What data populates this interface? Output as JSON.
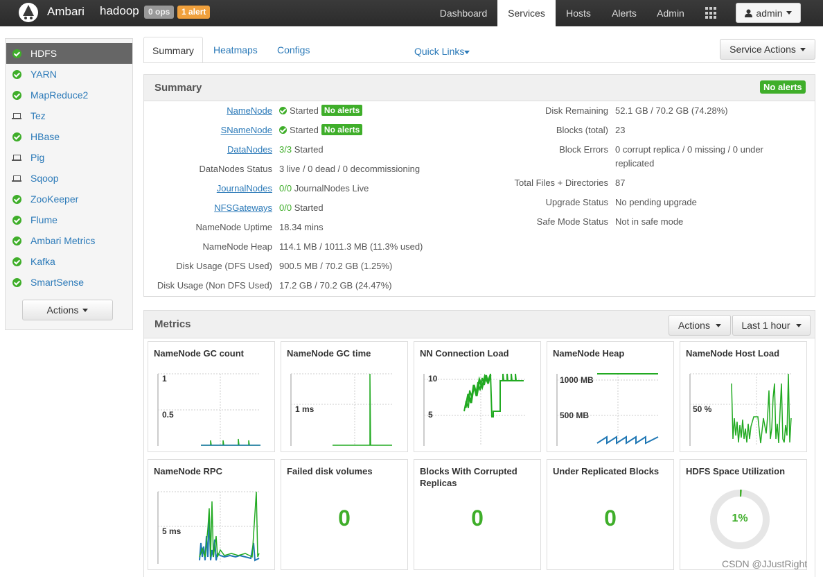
{
  "header": {
    "brand": "Ambari",
    "cluster": "hadoop",
    "ops_badge": "0 ops",
    "alert_badge": "1 alert",
    "nav": [
      "Dashboard",
      "Services",
      "Hosts",
      "Alerts",
      "Admin"
    ],
    "active_nav": "Services",
    "user": "admin"
  },
  "sidebar": {
    "items": [
      {
        "label": "HDFS",
        "icon": "check-circle-icon",
        "active": true
      },
      {
        "label": "YARN",
        "icon": "check-circle-icon"
      },
      {
        "label": "MapReduce2",
        "icon": "check-circle-icon"
      },
      {
        "label": "Tez",
        "icon": "laptop-icon"
      },
      {
        "label": "HBase",
        "icon": "check-circle-icon"
      },
      {
        "label": "Pig",
        "icon": "laptop-icon"
      },
      {
        "label": "Sqoop",
        "icon": "laptop-icon"
      },
      {
        "label": "ZooKeeper",
        "icon": "check-circle-icon"
      },
      {
        "label": "Flume",
        "icon": "check-circle-icon"
      },
      {
        "label": "Ambari Metrics",
        "icon": "check-circle-icon"
      },
      {
        "label": "Kafka",
        "icon": "check-circle-icon"
      },
      {
        "label": "SmartSense",
        "icon": "check-circle-icon"
      }
    ],
    "actions_label": "Actions"
  },
  "tabs": [
    "Summary",
    "Heatmaps",
    "Configs"
  ],
  "quick_links": "Quick Links",
  "service_actions": "Service Actions",
  "summary": {
    "title": "Summary",
    "no_alerts": "No alerts",
    "left": [
      {
        "label": "NameNode",
        "link": true,
        "status": "Started",
        "badge": "No alerts"
      },
      {
        "label": "SNameNode",
        "link": true,
        "status": "Started",
        "badge": "No alerts"
      },
      {
        "label": "DataNodes",
        "link": true,
        "count": "3/3",
        "value": " Started"
      },
      {
        "label": "DataNodes Status",
        "value": "3 live / 0 dead / 0 decommissioning"
      },
      {
        "label": "JournalNodes",
        "link": true,
        "count": "0/0",
        "value": " JournalNodes Live"
      },
      {
        "label": "NFSGateways",
        "link": true,
        "count": "0/0",
        "value": " Started"
      },
      {
        "label": "NameNode Uptime",
        "value": "18.34 mins"
      },
      {
        "label": "NameNode Heap",
        "value": "114.1 MB / 1011.3 MB (11.3% used)"
      },
      {
        "label": "Disk Usage (DFS Used)",
        "value": "900.5 MB / 70.2 GB (1.25%)"
      },
      {
        "label": "Disk Usage (Non DFS Used)",
        "value": "17.2 GB / 70.2 GB (24.47%)"
      }
    ],
    "right": [
      {
        "label": "Disk Remaining",
        "value": "52.1 GB / 70.2 GB (74.28%)"
      },
      {
        "label": "Blocks (total)",
        "value": "23"
      },
      {
        "label": "Block Errors",
        "value": "0 corrupt replica / 0 missing / 0 under",
        "value2": "replicated"
      },
      {
        "label": "Total Files + Directories",
        "value": "87"
      },
      {
        "label": "Upgrade Status",
        "value": "No pending upgrade"
      },
      {
        "label": "Safe Mode Status",
        "value": "Not in safe mode"
      }
    ]
  },
  "metrics": {
    "title": "Metrics",
    "actions_label": "Actions",
    "range_label": "Last 1 hour",
    "cards": [
      {
        "title": "NameNode GC count",
        "axis": [
          "1",
          "0.5"
        ]
      },
      {
        "title": "NameNode GC time",
        "axis": [
          "1 ms"
        ]
      },
      {
        "title": "NN Connection Load",
        "axis": [
          "10",
          "5"
        ]
      },
      {
        "title": "NameNode Heap",
        "axis": [
          "1000 MB",
          "500 MB"
        ]
      },
      {
        "title": "NameNode Host Load",
        "axis": [
          "50 %"
        ]
      },
      {
        "title": "NameNode RPC",
        "axis": [
          "5 ms"
        ]
      },
      {
        "title": "Failed disk volumes",
        "value": "0"
      },
      {
        "title": "Blocks With Corrupted Replicas",
        "value": "0"
      },
      {
        "title": "Under Replicated Blocks",
        "value": "0"
      },
      {
        "title": "HDFS Space Utilization",
        "value": "1%"
      }
    ]
  },
  "watermark": "CSDN @JJustRight",
  "colors": {
    "accent": "#2a79b8",
    "ok": "#3fae2a",
    "alert": "#f0a03c",
    "navbar": "#333333"
  }
}
